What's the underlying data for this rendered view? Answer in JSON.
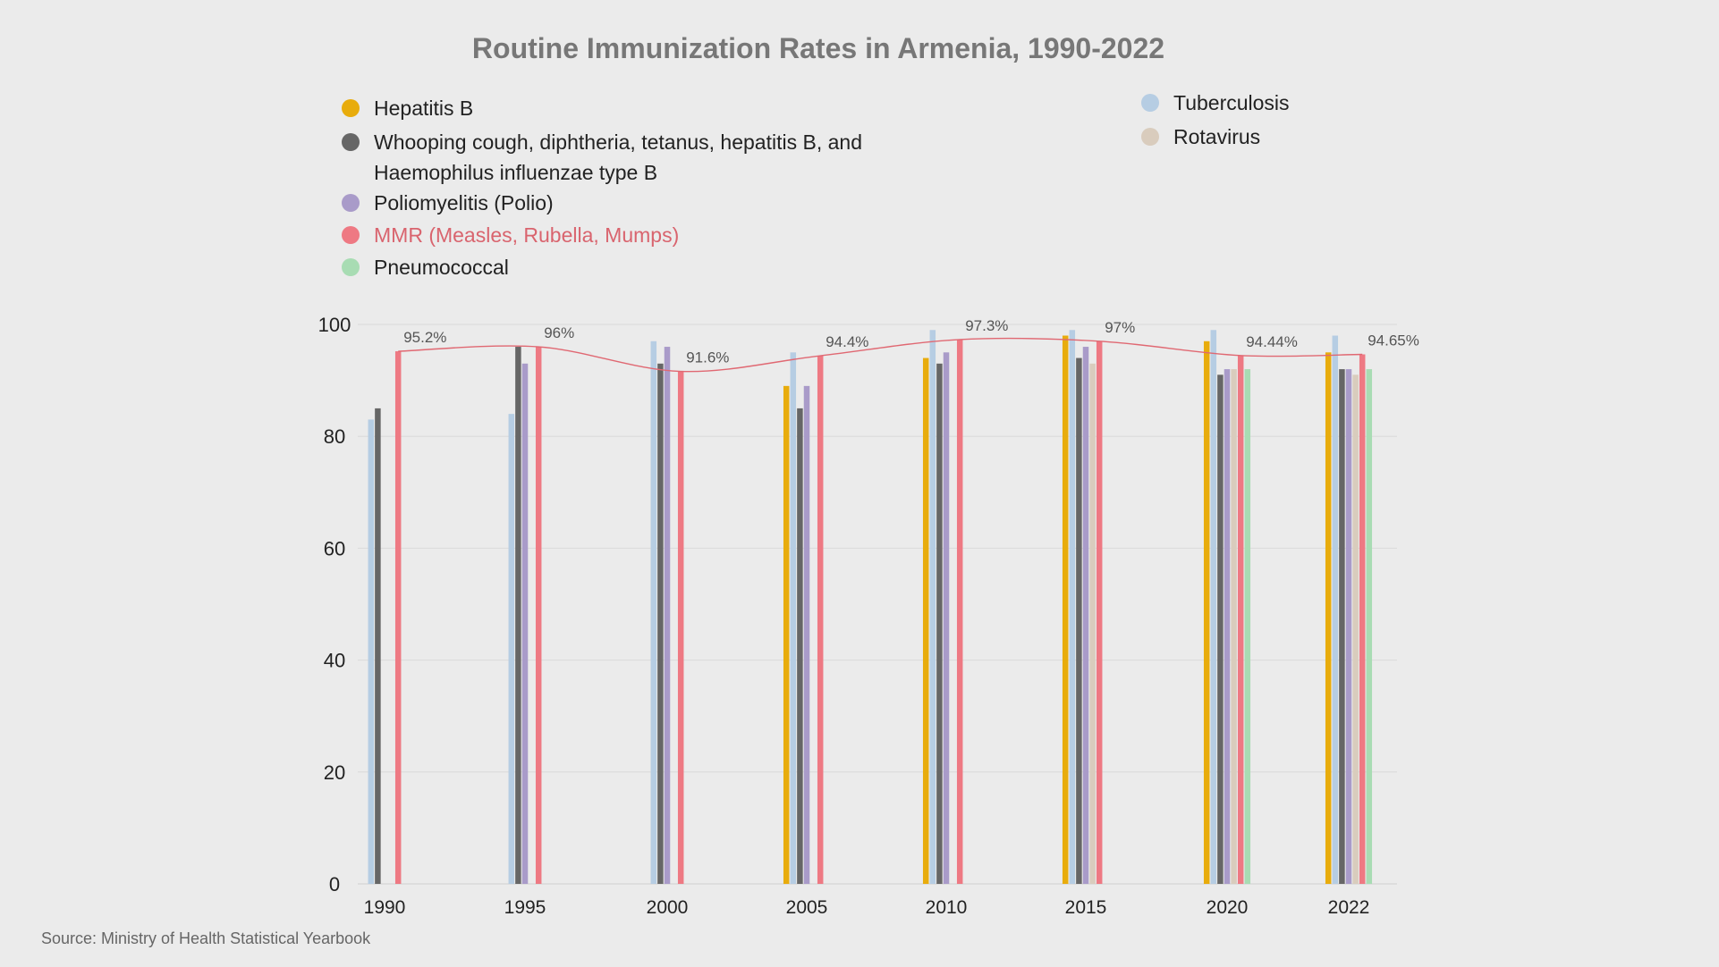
{
  "source_note": "Source: Ministry of Health Statistical Yearbook",
  "chart_data": {
    "type": "bar",
    "title": "Routine Immunization Rates in Armenia, 1990-2022",
    "xlabel": "",
    "ylabel": "",
    "ylim": [
      0,
      100
    ],
    "yticks": [
      0,
      20,
      40,
      60,
      80,
      100
    ],
    "grid": true,
    "legend_position": "top",
    "categories": [
      "1990",
      "1995",
      "2000",
      "2005",
      "2010",
      "2015",
      "2020",
      "2022"
    ],
    "series": [
      {
        "name": "Hepatitis B",
        "color": "#e8ac0c",
        "values": [
          null,
          null,
          null,
          89,
          94,
          98,
          97,
          95
        ]
      },
      {
        "name": "Tuberculosis",
        "color": "#b6cde3",
        "values": [
          83,
          84,
          97,
          95,
          99,
          99,
          99,
          98
        ]
      },
      {
        "name": "Whooping cough, diphtheria, tetanus, hepatitis B, and Haemophilus influenzae type B",
        "color": "#666666",
        "values": [
          85,
          96,
          93,
          85,
          93,
          94,
          91,
          92
        ]
      },
      {
        "name": "Poliomyelitis (Polio)",
        "color": "#a99bc9",
        "values": [
          null,
          93,
          96,
          89,
          95,
          96,
          92,
          92
        ]
      },
      {
        "name": "Rotavirus",
        "color": "#d9ccbd",
        "values": [
          null,
          null,
          null,
          null,
          null,
          93,
          92,
          91
        ]
      },
      {
        "name": "MMR (Measles, Rubella, Mumps)",
        "color": "#ee7983",
        "values": [
          95.2,
          96,
          91.6,
          94.4,
          97.3,
          97,
          94.44,
          94.65
        ]
      },
      {
        "name": "Pneumococcal",
        "color": "#a8dcb3",
        "values": [
          null,
          null,
          null,
          null,
          null,
          null,
          92,
          92
        ]
      }
    ],
    "trend_line": {
      "series": "MMR (Measles, Rubella, Mumps)",
      "color": "#e06872"
    },
    "data_labels": [
      "95.2%",
      "96%",
      "91.6%",
      "94.4%",
      "97.3%",
      "97%",
      "94.44%",
      "94.65%"
    ],
    "legend": [
      {
        "label": "Hepatitis B",
        "color": "#e8ac0c",
        "highlight": false
      },
      {
        "label": "Whooping cough, diphtheria, tetanus, hepatitis B, and Haemophilus influenzae type B",
        "color": "#666666",
        "highlight": false
      },
      {
        "label": "Poliomyelitis (Polio)",
        "color": "#a99bc9",
        "highlight": false
      },
      {
        "label": "MMR (Measles, Rubella, Mumps)",
        "color": "#ee7983",
        "highlight": true,
        "text_color": "#d9646e"
      },
      {
        "label": "Pneumococcal",
        "color": "#a8dcb3",
        "highlight": false
      },
      {
        "label": "Tuberculosis",
        "color": "#b6cde3",
        "highlight": false
      },
      {
        "label": "Rotavirus",
        "color": "#d9ccbd",
        "highlight": false
      }
    ]
  }
}
